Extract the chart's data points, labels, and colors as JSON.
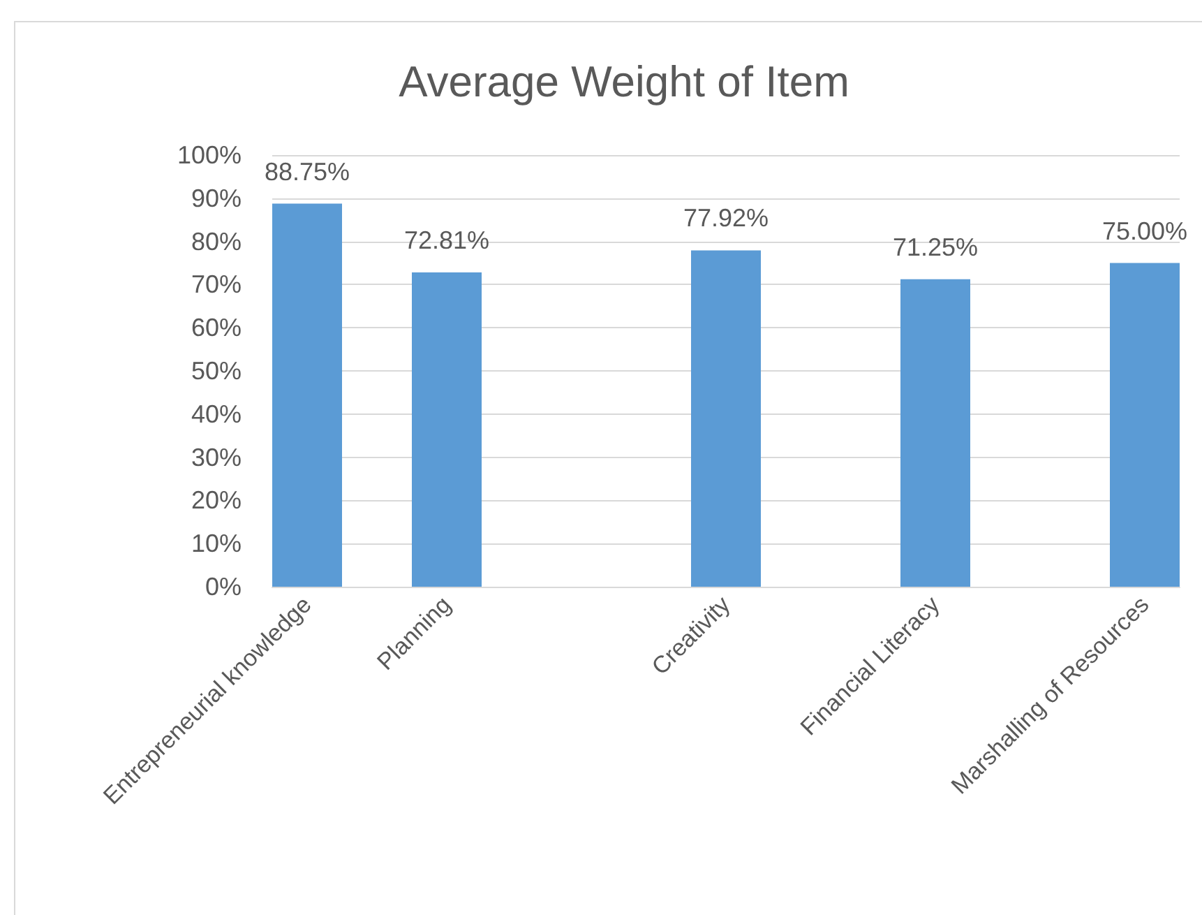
{
  "chart_data": {
    "type": "bar",
    "title": "Average Weight of Item",
    "categories": [
      "Entrepreneurial knowledge",
      null,
      "Planning",
      null,
      null,
      null,
      "Creativity",
      null,
      null,
      "Financial Literacy",
      null,
      null,
      "Marshalling of Resources"
    ],
    "values": [
      88.75,
      null,
      72.81,
      null,
      null,
      null,
      77.92,
      null,
      null,
      71.25,
      null,
      null,
      75.0
    ],
    "value_labels": [
      "88.75%",
      null,
      "72.81%",
      null,
      null,
      null,
      "77.92%",
      null,
      null,
      "71.25%",
      null,
      null,
      "75.00%"
    ],
    "color": "#5b9bd5",
    "ylim": [
      0,
      100
    ],
    "yticks": [
      {
        "value": 0,
        "label": "0%"
      },
      {
        "value": 10,
        "label": "10%"
      },
      {
        "value": 20,
        "label": "20%"
      },
      {
        "value": 30,
        "label": "30%"
      },
      {
        "value": 40,
        "label": "40%"
      },
      {
        "value": 50,
        "label": "50%"
      },
      {
        "value": 60,
        "label": "60%"
      },
      {
        "value": 70,
        "label": "70%"
      },
      {
        "value": 80,
        "label": "80%"
      },
      {
        "value": 90,
        "label": "90%"
      },
      {
        "value": 100,
        "label": "100%"
      }
    ],
    "grid": "y"
  }
}
